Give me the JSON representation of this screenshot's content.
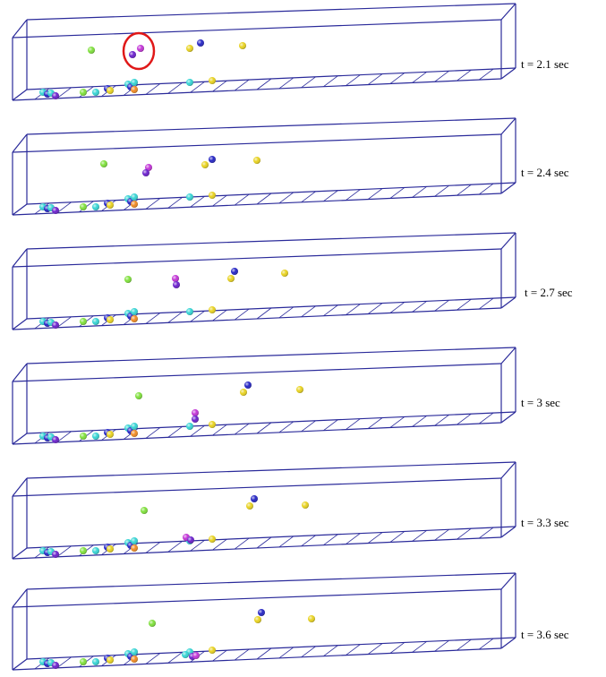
{
  "panels": [
    {
      "label": "t = 2.1 sec"
    },
    {
      "label": "t = 2.4 sec"
    },
    {
      "label": "t = 2.7 sec"
    },
    {
      "label": "t = 3 sec"
    },
    {
      "label": "t = 3.3 sec"
    },
    {
      "label": "t = 3.6 sec"
    }
  ]
}
